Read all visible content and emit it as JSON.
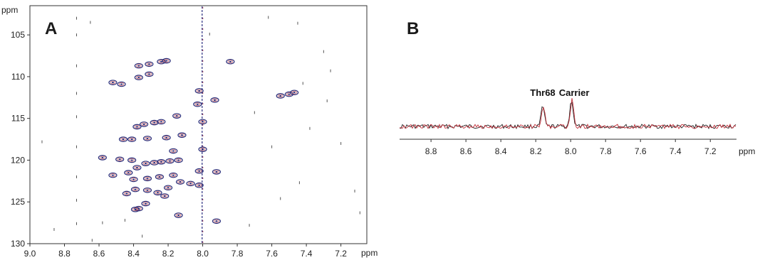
{
  "chart_data": [
    {
      "panel": "A",
      "type": "scatter",
      "x_unit": "ppm",
      "y_unit": "ppm",
      "xlim": [
        9.0,
        7.05
      ],
      "ylim": [
        101.5,
        130
      ],
      "x_ticks": [
        "9.0",
        "8.8",
        "8.6",
        "8.4",
        "8.2",
        "8.0",
        "7.8",
        "7.6",
        "7.4",
        "7.2"
      ],
      "y_ticks": [
        "105",
        "110",
        "115",
        "120",
        "125",
        "130"
      ],
      "colors": {
        "peaks": "#2b2f7a",
        "overlay": "#b0303a",
        "frame": "#333333",
        "streak": "#3a3f8a"
      },
      "peaks": [
        {
          "x": 8.37,
          "y": 108.7
        },
        {
          "x": 8.31,
          "y": 108.5
        },
        {
          "x": 8.24,
          "y": 108.2
        },
        {
          "x": 8.21,
          "y": 108.1
        },
        {
          "x": 7.84,
          "y": 108.2
        },
        {
          "x": 8.52,
          "y": 110.7
        },
        {
          "x": 8.47,
          "y": 110.9
        },
        {
          "x": 8.37,
          "y": 110.1
        },
        {
          "x": 8.31,
          "y": 109.7
        },
        {
          "x": 7.55,
          "y": 112.3
        },
        {
          "x": 7.5,
          "y": 112.1
        },
        {
          "x": 7.47,
          "y": 111.9
        },
        {
          "x": 8.02,
          "y": 111.7
        },
        {
          "x": 8.03,
          "y": 113.3
        },
        {
          "x": 7.93,
          "y": 112.8
        },
        {
          "x": 8.15,
          "y": 114.7
        },
        {
          "x": 8.34,
          "y": 115.7
        },
        {
          "x": 8.28,
          "y": 115.5
        },
        {
          "x": 8.24,
          "y": 115.4
        },
        {
          "x": 8.38,
          "y": 116.0
        },
        {
          "x": 8.12,
          "y": 117.0
        },
        {
          "x": 8.46,
          "y": 117.5
        },
        {
          "x": 8.41,
          "y": 117.5
        },
        {
          "x": 8.32,
          "y": 117.4
        },
        {
          "x": 8.21,
          "y": 117.3
        },
        {
          "x": 8.17,
          "y": 118.9
        },
        {
          "x": 8.0,
          "y": 115.4
        },
        {
          "x": 8.0,
          "y": 118.7
        },
        {
          "x": 8.58,
          "y": 119.7
        },
        {
          "x": 8.48,
          "y": 119.9
        },
        {
          "x": 8.41,
          "y": 120.0
        },
        {
          "x": 8.33,
          "y": 120.4
        },
        {
          "x": 8.28,
          "y": 120.3
        },
        {
          "x": 8.24,
          "y": 120.2
        },
        {
          "x": 8.19,
          "y": 120.1
        },
        {
          "x": 8.14,
          "y": 120.0
        },
        {
          "x": 8.38,
          "y": 120.9
        },
        {
          "x": 8.52,
          "y": 121.8
        },
        {
          "x": 8.43,
          "y": 121.5
        },
        {
          "x": 7.92,
          "y": 121.4
        },
        {
          "x": 8.02,
          "y": 121.3
        },
        {
          "x": 8.4,
          "y": 122.3
        },
        {
          "x": 8.32,
          "y": 122.2
        },
        {
          "x": 8.25,
          "y": 122.0
        },
        {
          "x": 8.17,
          "y": 121.8
        },
        {
          "x": 8.13,
          "y": 122.6
        },
        {
          "x": 8.07,
          "y": 122.8
        },
        {
          "x": 8.02,
          "y": 123.0
        },
        {
          "x": 8.2,
          "y": 123.3
        },
        {
          "x": 8.39,
          "y": 123.5
        },
        {
          "x": 8.32,
          "y": 123.6
        },
        {
          "x": 8.26,
          "y": 123.9
        },
        {
          "x": 8.22,
          "y": 124.3
        },
        {
          "x": 8.44,
          "y": 124.0
        },
        {
          "x": 8.33,
          "y": 125.2
        },
        {
          "x": 8.37,
          "y": 125.8
        },
        {
          "x": 8.39,
          "y": 125.9
        },
        {
          "x": 8.14,
          "y": 126.6
        },
        {
          "x": 7.92,
          "y": 127.3
        }
      ],
      "noise": [
        {
          "x": 8.73,
          "y": 103.0
        },
        {
          "x": 8.73,
          "y": 105.0
        },
        {
          "x": 8.73,
          "y": 108.7
        },
        {
          "x": 8.73,
          "y": 112.0
        },
        {
          "x": 8.73,
          "y": 114.8
        },
        {
          "x": 8.73,
          "y": 118.4
        },
        {
          "x": 8.73,
          "y": 122.0
        },
        {
          "x": 8.73,
          "y": 124.8
        },
        {
          "x": 8.73,
          "y": 127.6
        },
        {
          "x": 8.65,
          "y": 103.5
        },
        {
          "x": 8.89,
          "y": 104.3
        },
        {
          "x": 8.93,
          "y": 117.8
        },
        {
          "x": 8.86,
          "y": 128.3
        },
        {
          "x": 8.64,
          "y": 129.6
        },
        {
          "x": 7.7,
          "y": 114.3
        },
        {
          "x": 7.62,
          "y": 102.9
        },
        {
          "x": 7.6,
          "y": 118.4
        },
        {
          "x": 7.42,
          "y": 110.8
        },
        {
          "x": 7.38,
          "y": 116.2
        },
        {
          "x": 7.26,
          "y": 109.3
        },
        {
          "x": 7.28,
          "y": 112.9
        },
        {
          "x": 7.2,
          "y": 118.0
        },
        {
          "x": 7.12,
          "y": 123.7
        },
        {
          "x": 7.09,
          "y": 126.3
        },
        {
          "x": 7.44,
          "y": 122.7
        },
        {
          "x": 7.55,
          "y": 124.6
        },
        {
          "x": 7.45,
          "y": 103.6
        },
        {
          "x": 7.73,
          "y": 127.8
        },
        {
          "x": 8.35,
          "y": 129.1
        },
        {
          "x": 8.58,
          "y": 127.5
        },
        {
          "x": 7.96,
          "y": 104.9
        },
        {
          "x": 7.3,
          "y": 107.0
        },
        {
          "x": 8.45,
          "y": 127.2
        }
      ]
    },
    {
      "panel": "B",
      "type": "line",
      "x_unit": "ppm",
      "xlim": [
        8.98,
        7.05
      ],
      "x_ticks": [
        "8.8",
        "8.6",
        "8.4",
        "8.2",
        "8.0",
        "7.8",
        "7.6",
        "7.4",
        "7.2"
      ],
      "annotations": [
        {
          "text": "Thr68",
          "x": 8.16
        },
        {
          "text": "Carrier",
          "x": 7.98
        }
      ],
      "series_colors": [
        "#222222",
        "#c0303a"
      ],
      "peaks": [
        {
          "x": 8.16,
          "height": 0.55
        },
        {
          "x": 7.995,
          "height": 0.72
        }
      ]
    }
  ],
  "panel_labels": {
    "a": "A",
    "b": "B"
  },
  "axis_unit": "ppm"
}
